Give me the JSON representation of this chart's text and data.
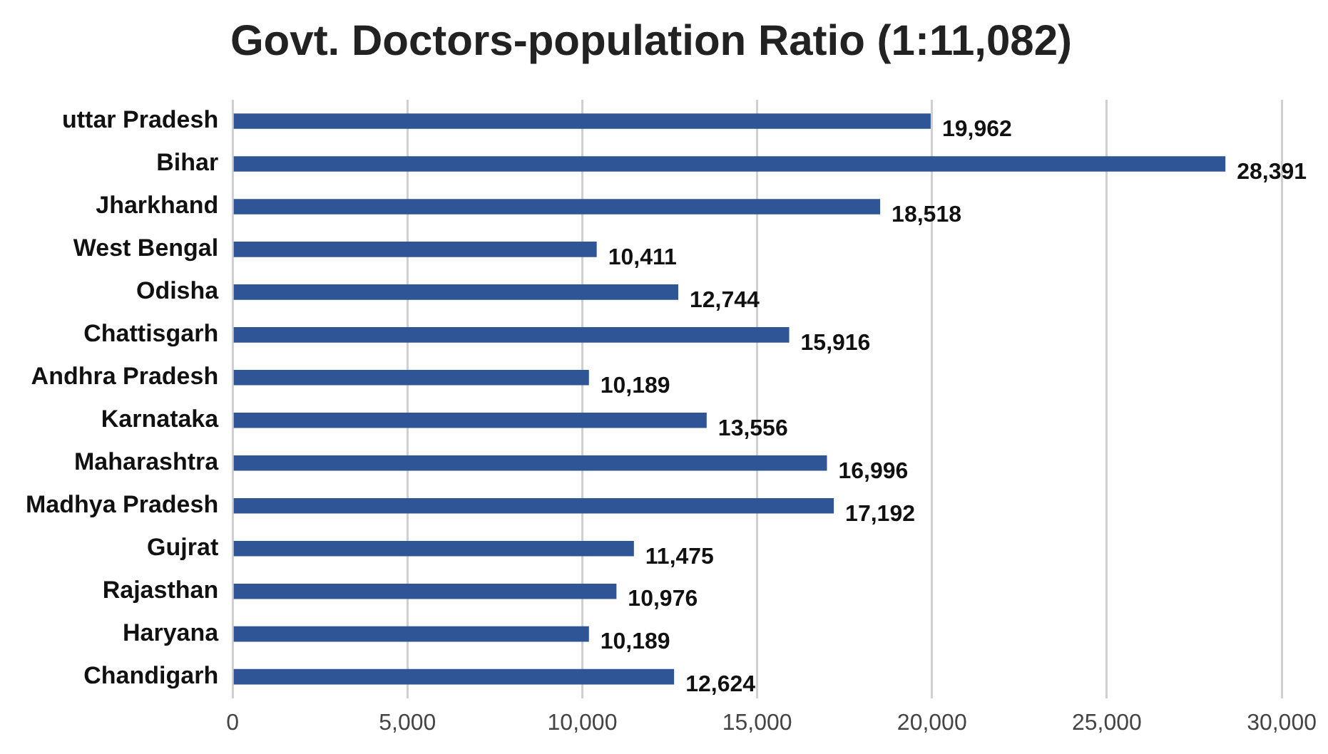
{
  "chart_data": {
    "type": "bar",
    "orientation": "horizontal",
    "title": "Govt. Doctors-population Ratio (1:11,082)",
    "categories": [
      "uttar Pradesh",
      "Bihar",
      "Jharkhand",
      "West Bengal",
      "Odisha",
      "Chattisgarh",
      "Andhra Pradesh",
      "Karnataka",
      "Maharashtra",
      "Madhya Pradesh",
      "Gujrat",
      "Rajasthan",
      "Haryana",
      "Chandigarh"
    ],
    "values": [
      19962,
      28391,
      18518,
      10411,
      12744,
      15916,
      10189,
      13556,
      16996,
      17192,
      11475,
      10976,
      10189,
      12624
    ],
    "value_labels": [
      "19,962",
      "28,391",
      "18,518",
      "10,411",
      "12,744",
      "15,916",
      "10,189",
      "13,556",
      "16,996",
      "17,192",
      "11,475",
      "10,976",
      "10,189",
      "12,624"
    ],
    "color": "#2f5597",
    "xlim": [
      0,
      30000
    ],
    "xticks": [
      {
        "value": 0,
        "label": "0"
      },
      {
        "value": 5000,
        "label": "5,000"
      },
      {
        "value": 10000,
        "label": "10,000"
      },
      {
        "value": 15000,
        "label": "15,000"
      },
      {
        "value": 20000,
        "label": "20,000"
      },
      {
        "value": 25000,
        "label": "25,000"
      },
      {
        "value": 30000,
        "label": "30,000"
      }
    ],
    "grid": "x",
    "legend": false
  }
}
